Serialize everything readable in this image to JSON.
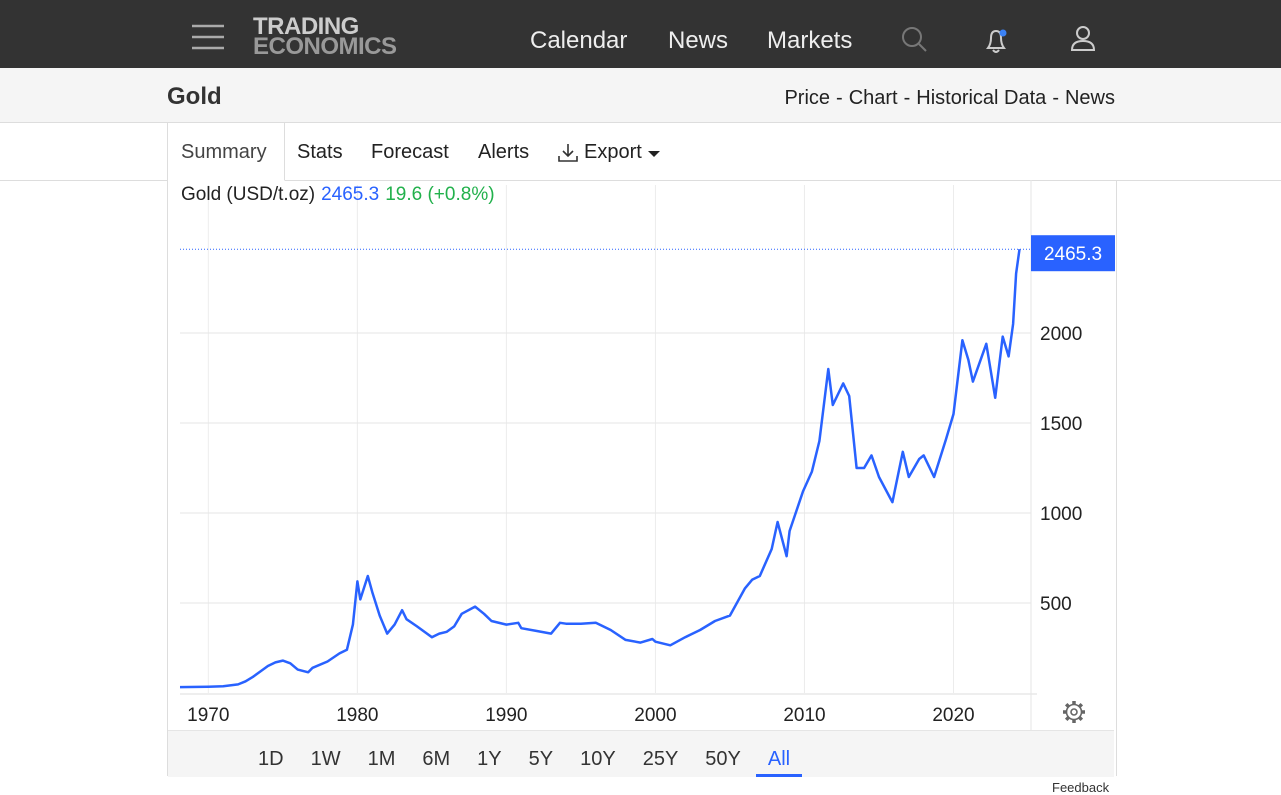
{
  "nav": {
    "logo": [
      "TRADING",
      "ECONOMICS"
    ],
    "links": [
      "Calendar",
      "News",
      "Markets"
    ]
  },
  "header": {
    "title": "Gold",
    "links": [
      "Price",
      "Chart",
      "Historical Data",
      "News"
    ],
    "separator": "-"
  },
  "tabs": [
    "Summary",
    "Stats",
    "Forecast",
    "Alerts",
    "Export"
  ],
  "chart_data": {
    "type": "line",
    "legend_label": "Gold (USD/t.oz)",
    "last_value": 2465.3,
    "change": "19.6 (+0.8%)",
    "color": "#2962ff",
    "grid": true,
    "x": [
      1968.1,
      1970,
      1971,
      1972,
      1972.5,
      1973,
      1973.5,
      1974,
      1974.5,
      1975,
      1975.5,
      1976,
      1976.7,
      1977,
      1978,
      1978.8,
      1979.3,
      1979.7,
      1980,
      1980.2,
      1980.7,
      1981,
      1981.5,
      1982,
      1982.5,
      1983,
      1983.3,
      1984,
      1985,
      1985.5,
      1986,
      1986.5,
      1987,
      1987.9,
      1988.5,
      1989,
      1990,
      1990.8,
      1991,
      1992,
      1993,
      1993.6,
      1994,
      1995,
      1996,
      1997,
      1998,
      1999,
      1999.8,
      2000,
      2001,
      2002,
      2003,
      2004,
      2005,
      2006,
      2006.5,
      2007,
      2007.8,
      2008.2,
      2008.8,
      2009,
      2009.9,
      2010.5,
      2011,
      2011.6,
      2011.9,
      2012.6,
      2013,
      2013.5,
      2014,
      2014.5,
      2015,
      2015.9,
      2016.6,
      2017,
      2017.7,
      2018,
      2018.7,
      2019.5,
      2020,
      2020.6,
      2021,
      2021.3,
      2022.2,
      2022.8,
      2023.3,
      2023.7,
      2024,
      2024.2,
      2024.43
    ],
    "values": [
      33,
      35,
      38,
      48,
      65,
      90,
      120,
      150,
      170,
      180,
      165,
      130,
      115,
      140,
      175,
      220,
      240,
      380,
      620,
      520,
      650,
      560,
      430,
      330,
      380,
      460,
      410,
      370,
      310,
      330,
      340,
      370,
      440,
      480,
      440,
      400,
      380,
      390,
      360,
      345,
      330,
      390,
      385,
      385,
      390,
      350,
      295,
      280,
      300,
      285,
      265,
      310,
      350,
      400,
      430,
      580,
      630,
      650,
      800,
      950,
      760,
      900,
      1120,
      1230,
      1400,
      1800,
      1600,
      1720,
      1650,
      1250,
      1250,
      1320,
      1200,
      1060,
      1340,
      1200,
      1300,
      1320,
      1200,
      1410,
      1550,
      1960,
      1850,
      1730,
      1940,
      1640,
      1980,
      1870,
      2050,
      2330,
      2465.3
    ],
    "xlim": [
      1968.1,
      2025.2
    ],
    "xticks": [
      1970,
      1980,
      1990,
      2000,
      2010,
      2020
    ],
    "ylim": [
      0,
      2822
    ],
    "yticks": [
      500,
      1000,
      1500,
      2000
    ]
  },
  "ranges": [
    "1D",
    "1W",
    "1M",
    "6M",
    "1Y",
    "5Y",
    "10Y",
    "25Y",
    "50Y",
    "All"
  ],
  "feedback": "Feedback"
}
